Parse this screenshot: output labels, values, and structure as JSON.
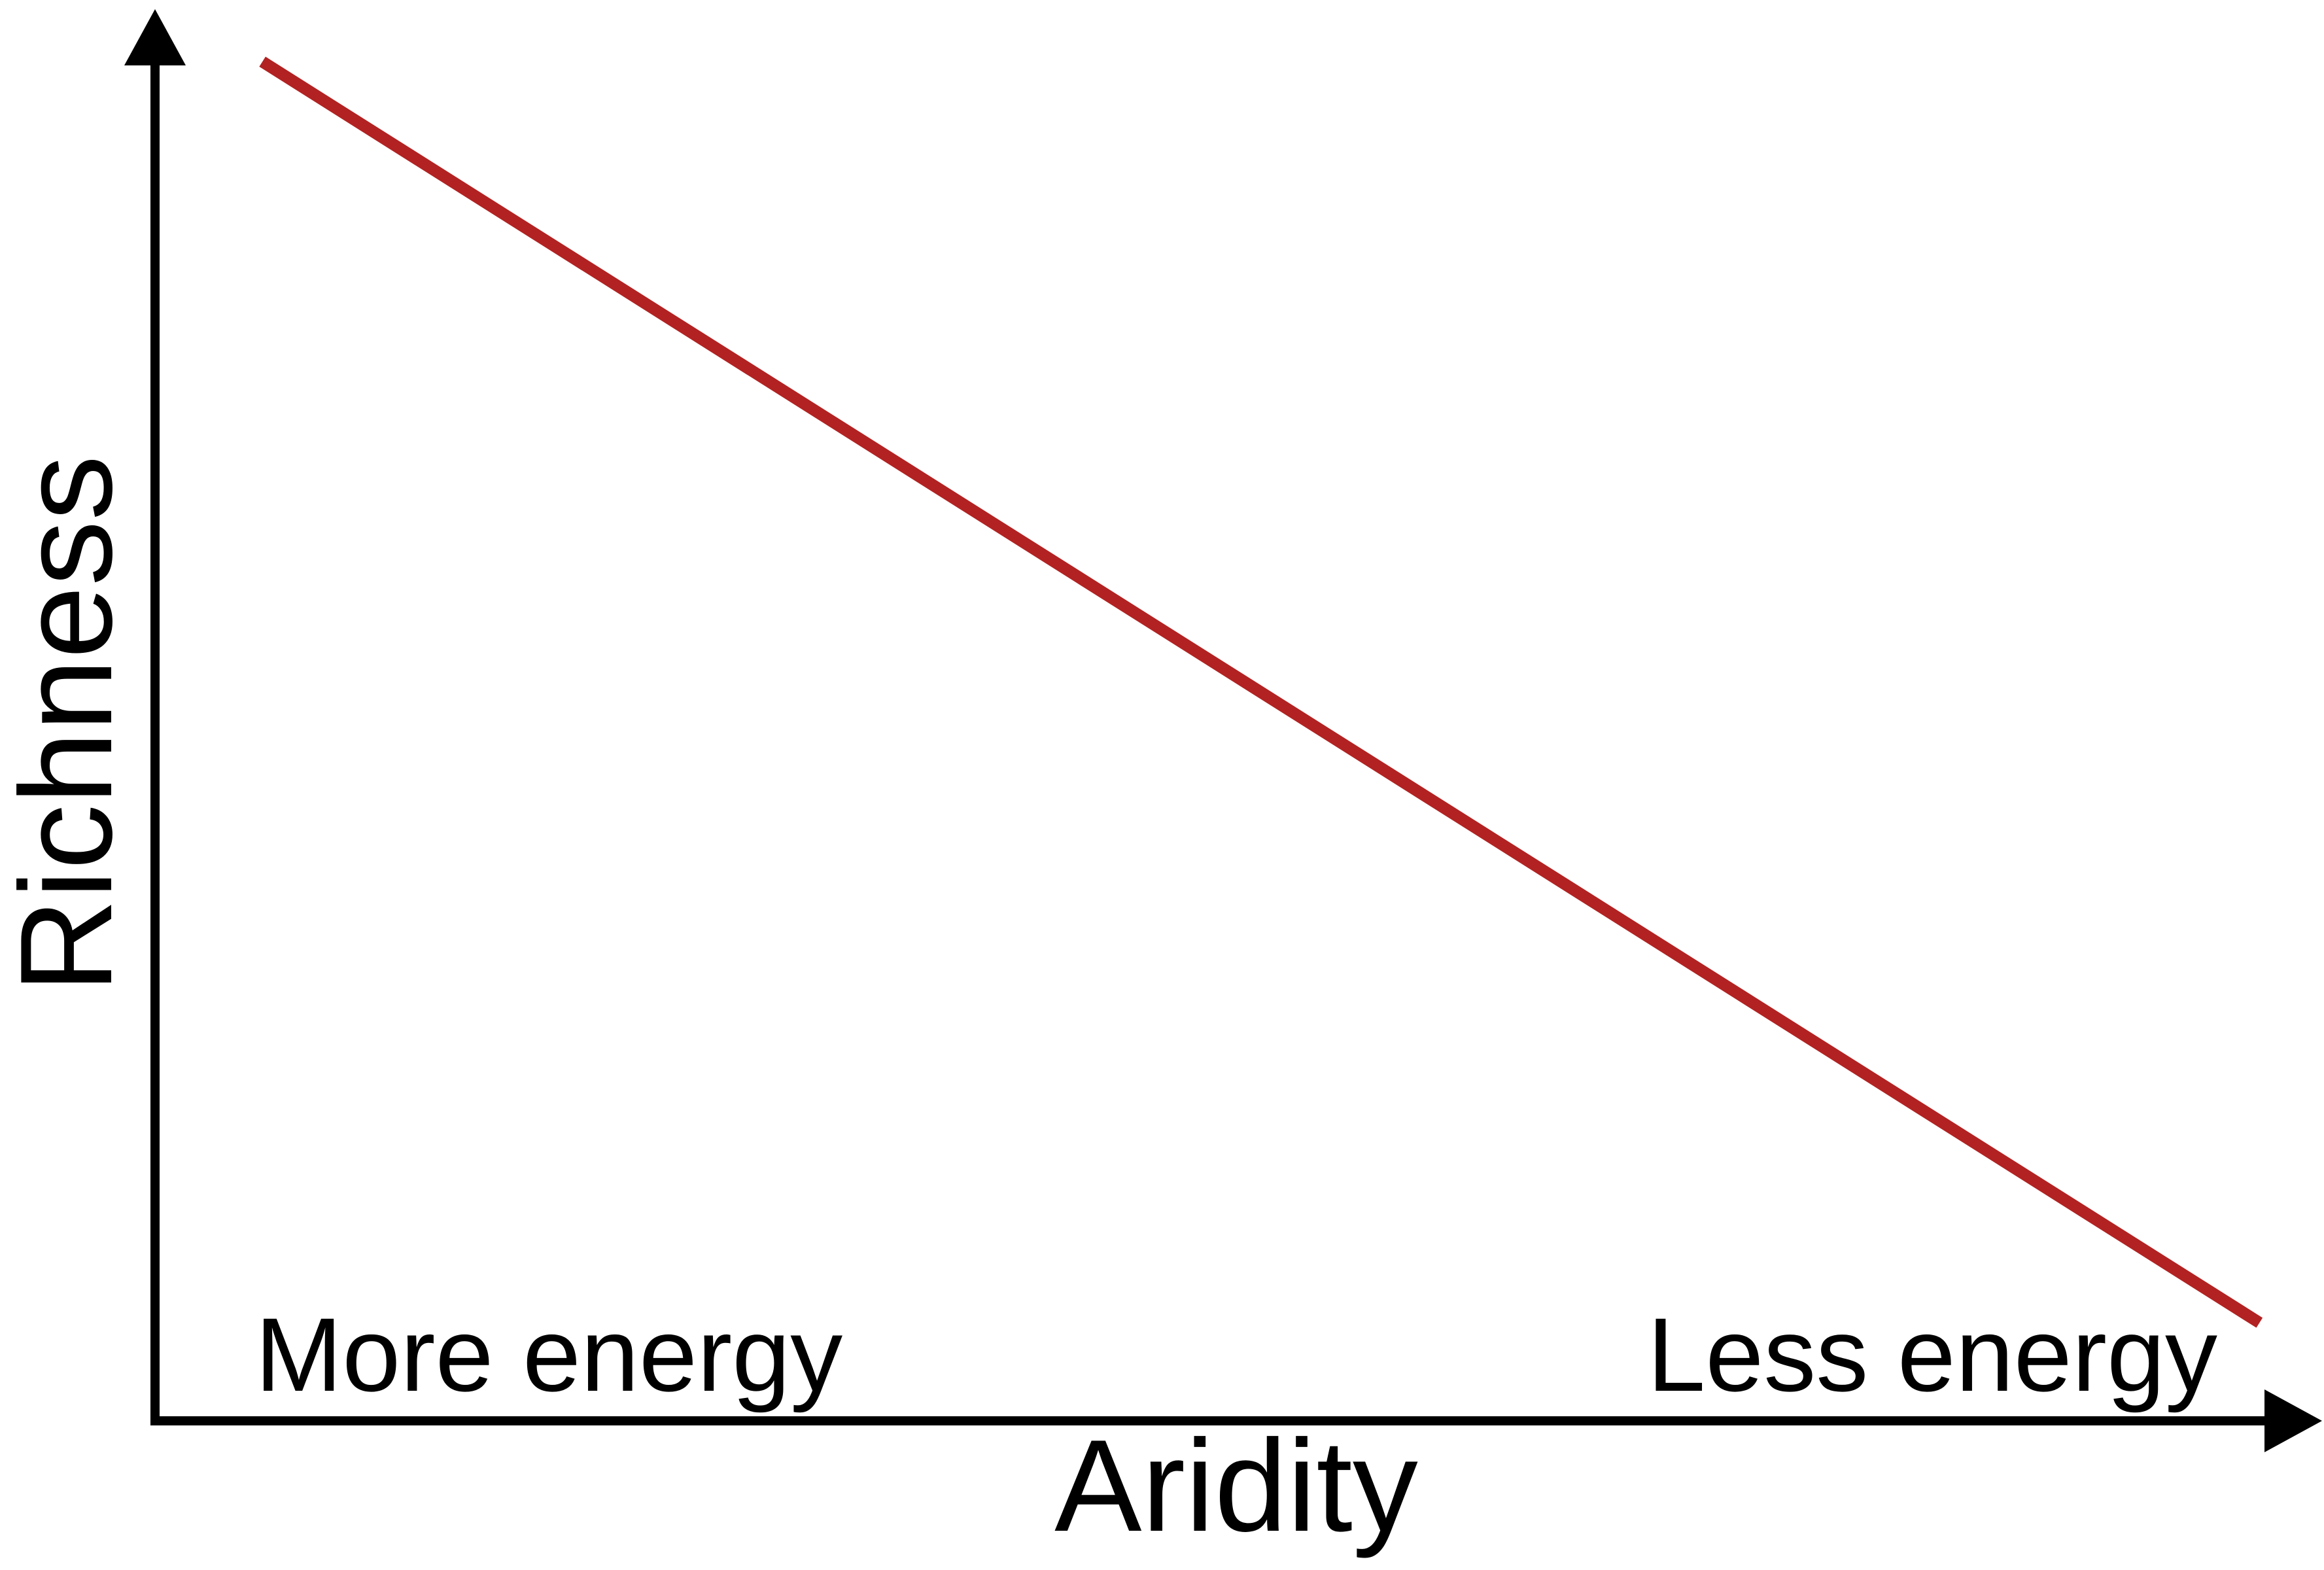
{
  "chart_data": {
    "type": "line",
    "title": "",
    "xlabel": "Aridity",
    "ylabel": "Richness",
    "series": [
      {
        "x": [
          0.05,
          0.98
        ],
        "y": [
          0.97,
          0.07
        ]
      }
    ],
    "xlim": [
      0,
      1
    ],
    "ylim": [
      0,
      1
    ],
    "grid": false,
    "ticks": false,
    "annotations": [
      {
        "text": "More energy",
        "position": "bottom-left"
      },
      {
        "text": "Less energy",
        "position": "bottom-right"
      }
    ],
    "colors": {
      "line": "#b22222",
      "axis": "#000000"
    }
  }
}
